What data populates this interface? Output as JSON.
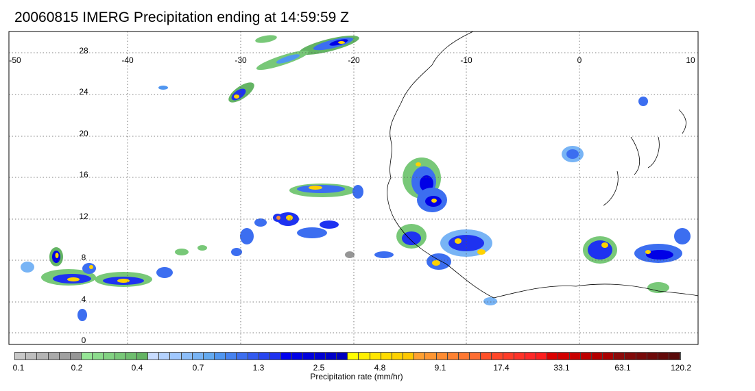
{
  "title": "20060815 IMERG Precipitation ending at 14:59:59 Z",
  "map": {
    "lon_range": [
      -50,
      10
    ],
    "lat_range": [
      -1,
      30
    ],
    "lon_ticks": [
      "-50",
      "-40",
      "-30",
      "-20",
      "-10",
      "0",
      "10"
    ],
    "lat_ticks": [
      "0",
      "4",
      "8",
      "12",
      "16",
      "20",
      "24",
      "28"
    ],
    "gridlines": "dotted",
    "coastline_color": "#000000"
  },
  "colorbar": {
    "title": "Precipitation rate (mm/hr)",
    "labels": [
      "0.1",
      "0.2",
      "0.4",
      "0.7",
      "1.3",
      "2.5",
      "4.8",
      "9.1",
      "17.4",
      "33.1",
      "63.1",
      "120.2"
    ],
    "colors": [
      "#c8c8c8",
      "#bebebe",
      "#b4b4b4",
      "#aaaaaa",
      "#a0a0a0",
      "#969696",
      "#96e696",
      "#8cdc8c",
      "#82d282",
      "#78c878",
      "#6ebe6e",
      "#64b464",
      "#c8dcff",
      "#b4d2ff",
      "#a0c8ff",
      "#8cbefa",
      "#78b4f5",
      "#64aaf0",
      "#5096f0",
      "#4682f0",
      "#3c6ef0",
      "#325af0",
      "#2846f0",
      "#1e32f0",
      "#0000f0",
      "#0000e6",
      "#0000dc",
      "#0000d2",
      "#0000c8",
      "#0000be",
      "#ffff00",
      "#fff000",
      "#ffe600",
      "#ffdc00",
      "#ffd200",
      "#ffc800",
      "#ffa032",
      "#ff9632",
      "#ff8c32",
      "#ff8232",
      "#ff7832",
      "#ff6e32",
      "#ff5028",
      "#ff4628",
      "#ff3c28",
      "#ff3228",
      "#ff2828",
      "#ff1e1e",
      "#dc0000",
      "#d20000",
      "#c80000",
      "#be0000",
      "#b40000",
      "#aa0000",
      "#8c0a0a",
      "#820a0a",
      "#780a0a",
      "#6e0a0a",
      "#640a0a",
      "#5a0a0a"
    ]
  }
}
